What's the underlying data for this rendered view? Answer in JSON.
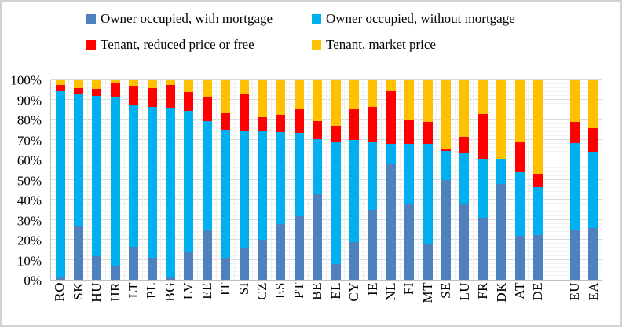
{
  "chart_data": {
    "type": "bar",
    "stacked": true,
    "title": "",
    "unit": "%",
    "legend_position": "top",
    "ylim": [
      0,
      100
    ],
    "grid": true,
    "categories": [
      "RO",
      "SK",
      "HU",
      "HR",
      "LT",
      "PL",
      "BG",
      "LV",
      "EE",
      "IT",
      "SI",
      "CZ",
      "ES",
      "PT",
      "BE",
      "EL",
      "CY",
      "IE",
      "NL",
      "FI",
      "MT",
      "SE",
      "LU",
      "FR",
      "DK",
      "AT",
      "DE",
      "",
      "EU",
      "EA"
    ],
    "series": [
      {
        "name": "Owner occupied, with mortgage",
        "color": "#4F81BD",
        "values": [
          1,
          27,
          12,
          7,
          16.5,
          11,
          1.5,
          14,
          25,
          11,
          16,
          20,
          28,
          32,
          43,
          8,
          19,
          35,
          58,
          38,
          18,
          50,
          38,
          31,
          48,
          22,
          22.5,
          0,
          25,
          26
        ]
      },
      {
        "name": "Owner occupied, without mortgage",
        "color": "#00B0F0",
        "values": [
          93.5,
          66.5,
          80,
          84.5,
          71,
          75.5,
          84.5,
          70.5,
          54.5,
          64,
          58.5,
          54.5,
          46,
          41.5,
          27.5,
          61,
          51,
          34,
          10,
          30,
          50,
          14.5,
          25.5,
          29.5,
          12.5,
          32,
          24,
          0,
          43.5,
          38
        ]
      },
      {
        "name": "Tenant, reduced price or free",
        "color": "#FF0000",
        "values": [
          3,
          2.5,
          3.5,
          7,
          9.5,
          9.5,
          11.5,
          9.5,
          12,
          8.5,
          18.5,
          7,
          8.5,
          12,
          9,
          8,
          15.5,
          17.5,
          26.5,
          12,
          11,
          1,
          8,
          22.5,
          0,
          15,
          6.5,
          0,
          10.5,
          12
        ]
      },
      {
        "name": "Tenant, market price",
        "color": "#FFC000",
        "values": [
          2.5,
          4,
          4.5,
          1.5,
          3,
          4,
          2.5,
          6,
          8.5,
          16.5,
          7,
          18.5,
          17.5,
          14.5,
          20.5,
          23,
          14.5,
          13.5,
          5.5,
          20,
          21,
          34.5,
          28.5,
          17,
          39.5,
          31,
          47,
          0,
          21,
          24
        ]
      }
    ],
    "y_axis": {
      "min": 0,
      "max": 100,
      "major_step": 10,
      "minor_step": 2,
      "tick_labels": [
        "0%",
        "10%",
        "20%",
        "30%",
        "40%",
        "50%",
        "60%",
        "70%",
        "80%",
        "90%",
        "100%"
      ]
    }
  }
}
